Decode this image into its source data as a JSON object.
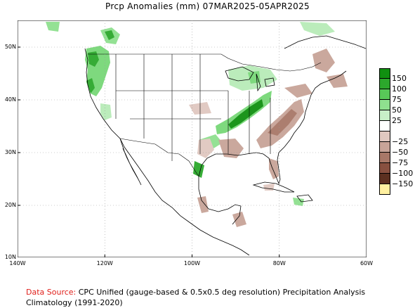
{
  "title": "Prcp Anomalies (mm) 07MAR2025-05APR2025",
  "map": {
    "x_ticks": [
      "140W",
      "120W",
      "100W",
      "80W",
      "60W"
    ],
    "y_ticks": [
      "50N",
      "40N",
      "30N",
      "20N",
      "10N"
    ],
    "colors": {
      "ocean": "#ffffff",
      "land": "#ffffff",
      "border": "#000000",
      "grid": "#9a9a9a",
      "dark_green": "#109010",
      "green": "#2ca82c",
      "light_green": "#78d878",
      "pale_green": "#b8ecb8",
      "pale_brown": "#d8b8b0",
      "brown": "#b88878",
      "dark_brown": "#8b5a4a"
    }
  },
  "legend": {
    "items": [
      {
        "label": "150",
        "color": "#109010"
      },
      {
        "label": "100",
        "color": "#2ca82c"
      },
      {
        "label": "75",
        "color": "#58c858"
      },
      {
        "label": "50",
        "color": "#8fe08f"
      },
      {
        "label": "25",
        "color": "#c8f0c8"
      },
      {
        "label": "",
        "color": "#ffffff"
      },
      {
        "label": "−25",
        "color": "#e0c8c0"
      },
      {
        "label": "−50",
        "color": "#c8a498"
      },
      {
        "label": "−75",
        "color": "#a87868"
      },
      {
        "label": "−100",
        "color": "#885040"
      },
      {
        "label": "−150",
        "color": "#5c3020"
      },
      {
        "label": "",
        "color": "#fff0a0"
      }
    ]
  },
  "footer": {
    "source_label": "Data Source:",
    "source_text": "CPC Unified (gauge-based & 0.5x0.5 deg resolution) Precipitation Analysis",
    "climatology": "Climatology (1991-2020)"
  }
}
